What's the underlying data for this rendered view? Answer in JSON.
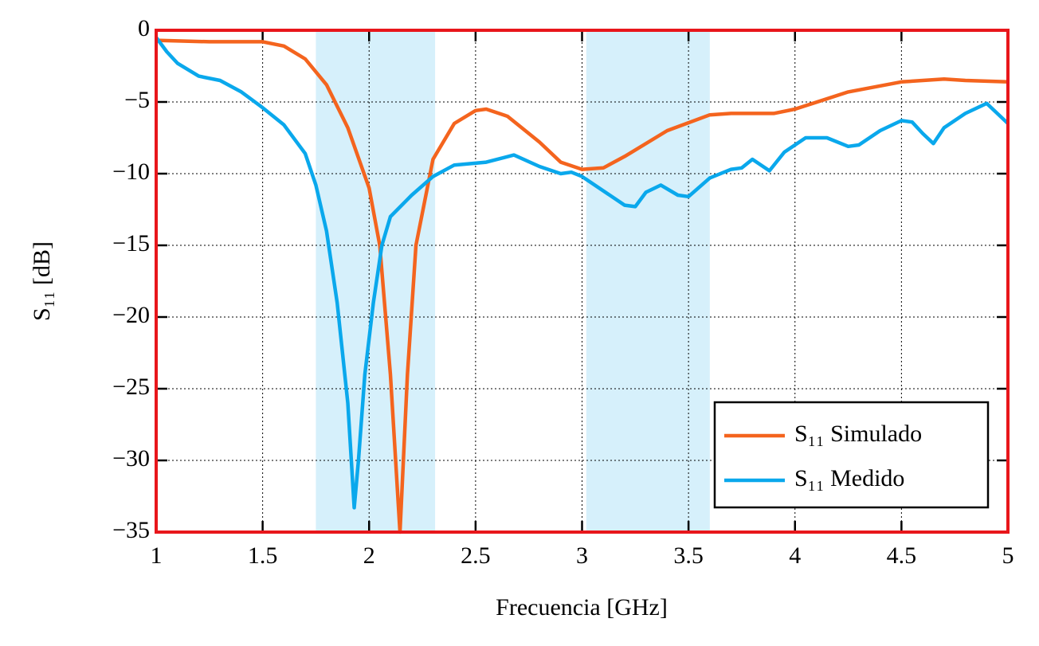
{
  "chart_data": {
    "type": "line",
    "x_label": "Frecuencia [GHz]",
    "y_label": "S₁₁ [dB]",
    "xlim": [
      1,
      5
    ],
    "ylim": [
      -35,
      0
    ],
    "xticks": [
      1,
      1.5,
      2,
      2.5,
      3,
      3.5,
      4,
      4.5,
      5
    ],
    "yticks": [
      0,
      {
        "value": -5,
        "label": "−5"
      },
      {
        "value": -10,
        "label": "−10"
      },
      {
        "value": -15,
        "label": "−15"
      },
      {
        "value": -20,
        "label": "−20"
      },
      {
        "value": -25,
        "label": "−25"
      },
      {
        "value": -30,
        "label": "−30"
      },
      {
        "value": -35,
        "label": "−35"
      }
    ],
    "grid": true,
    "legend": "lower right",
    "bands": [
      [
        1.75,
        2.31
      ],
      [
        3.02,
        3.6
      ]
    ],
    "band_color": "#d6f0fb",
    "frame_color": "#e8161b",
    "series": [
      {
        "name": "S₁₁ Simulado",
        "color": "#f4641e",
        "x": [
          1.0,
          1.25,
          1.5,
          1.6,
          1.7,
          1.8,
          1.9,
          2.0,
          2.05,
          2.1,
          2.145,
          2.18,
          2.22,
          2.3,
          2.4,
          2.5,
          2.55,
          2.65,
          2.8,
          2.9,
          3.0,
          3.1,
          3.2,
          3.4,
          3.6,
          3.7,
          3.9,
          4.0,
          4.25,
          4.5,
          4.7,
          4.8,
          5.0
        ],
        "values": [
          -0.7,
          -0.8,
          -0.8,
          -1.1,
          -2,
          -3.8,
          -6.8,
          -11,
          -15,
          -24,
          -35,
          -24,
          -15,
          -9,
          -6.5,
          -5.6,
          -5.5,
          -6,
          -7.8,
          -9.2,
          -9.7,
          -9.6,
          -8.8,
          -7,
          -5.9,
          -5.8,
          -5.8,
          -5.5,
          -4.3,
          -3.6,
          -3.4,
          -3.5,
          -3.6
        ]
      },
      {
        "name": "S₁₁ Medido",
        "color": "#0aa8ec",
        "x": [
          1.0,
          1.05,
          1.1,
          1.2,
          1.3,
          1.4,
          1.5,
          1.6,
          1.7,
          1.75,
          1.8,
          1.85,
          1.9,
          1.93,
          1.95,
          1.98,
          2.02,
          2.06,
          2.1,
          2.2,
          2.3,
          2.4,
          2.55,
          2.68,
          2.8,
          2.9,
          2.95,
          3.0,
          3.1,
          3.2,
          3.25,
          3.3,
          3.37,
          3.45,
          3.5,
          3.6,
          3.7,
          3.75,
          3.8,
          3.85,
          3.88,
          3.95,
          4.05,
          4.15,
          4.25,
          4.3,
          4.4,
          4.5,
          4.55,
          4.6,
          4.65,
          4.7,
          4.8,
          4.9,
          5.0
        ],
        "values": [
          -0.5,
          -1.5,
          -2.3,
          -3.2,
          -3.5,
          -4.3,
          -5.4,
          -6.6,
          -8.6,
          -10.8,
          -14,
          -19,
          -26,
          -33.3,
          -30,
          -24,
          -19,
          -15,
          -13,
          -11.5,
          -10.2,
          -9.4,
          -9.2,
          -8.7,
          -9.5,
          -10,
          -9.9,
          -10.2,
          -11.2,
          -12.2,
          -12.3,
          -11.3,
          -10.8,
          -11.5,
          -11.6,
          -10.3,
          -9.7,
          -9.6,
          -9,
          -9.5,
          -9.8,
          -8.5,
          -7.5,
          -7.5,
          -8.1,
          -8,
          -7,
          -6.3,
          -6.4,
          -7.2,
          -7.9,
          -6.8,
          -5.8,
          -5.1,
          -6.5
        ]
      }
    ]
  }
}
